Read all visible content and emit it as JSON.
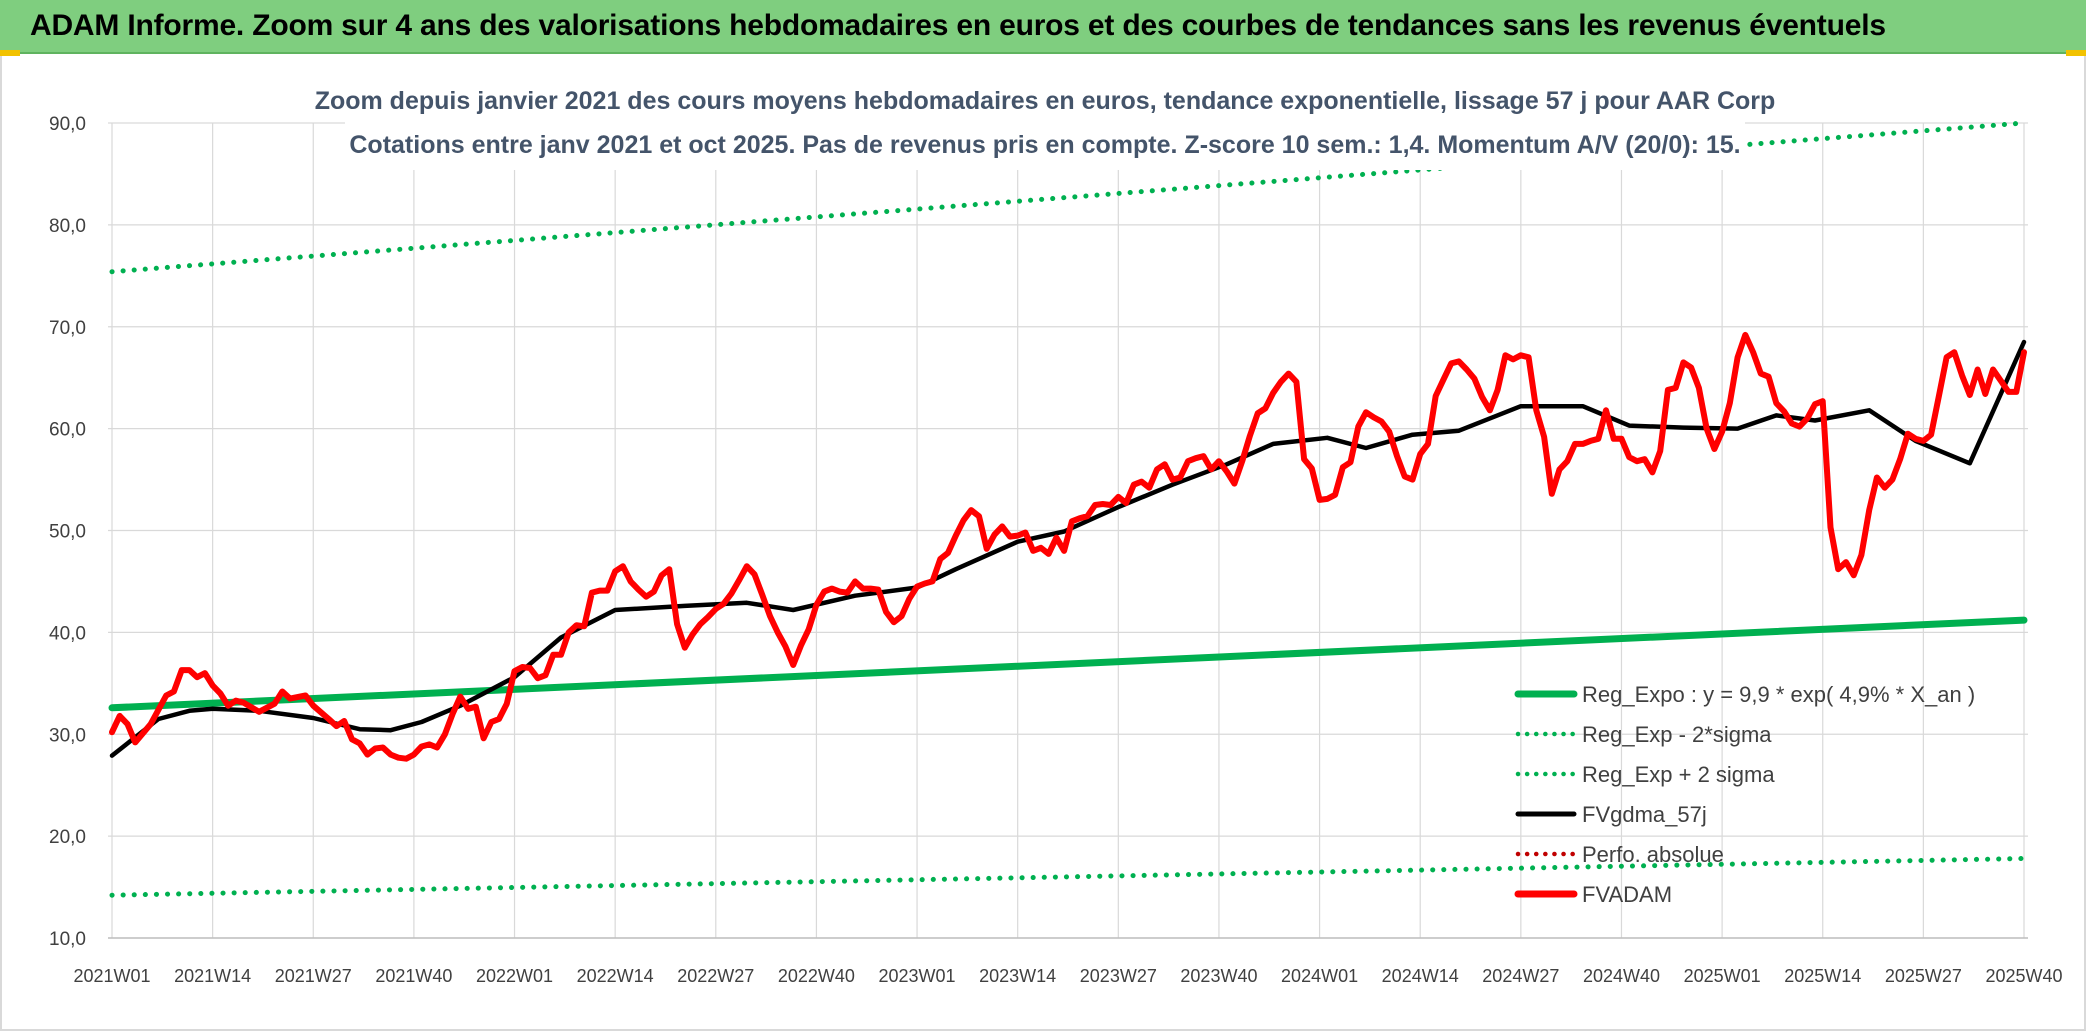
{
  "header": {
    "title": "ADAM Informe. Zoom sur 4 ans des valorisations hebdomadaires en euros et des courbes de tendances sans les revenus éventuels"
  },
  "colors": {
    "banner_bg": "#7fce7f",
    "trend": "#00b050",
    "price": "#ff0000",
    "smooth": "#000000",
    "perfo": "#c00000",
    "grid": "#d9d9d9",
    "title_text": "#44546a"
  },
  "chart_data": {
    "type": "line",
    "title": "Zoom depuis janvier 2021 des cours moyens hebdomadaires en euros, tendance exponentielle, lissage 57 j pour AAR Corp",
    "subtitle": "Cotations entre janv 2021 et oct 2025. Pas de revenus pris en compte. Z-score 10 sem.: 1,4. Momentum A/V (20/0): 15.",
    "xlabel": "",
    "ylabel": "",
    "ylim": [
      10,
      90
    ],
    "yticks": [
      "10,0",
      "20,0",
      "30,0",
      "40,0",
      "50,0",
      "60,0",
      "70,0",
      "80,0",
      "90,0"
    ],
    "xticks": [
      "2021W01",
      "2021W14",
      "2021W27",
      "2021W40",
      "2022W01",
      "2022W14",
      "2022W27",
      "2022W40",
      "2023W01",
      "2023W14",
      "2023W27",
      "2023W40",
      "2024W01",
      "2024W14",
      "2024W27",
      "2024W40",
      "2025W01",
      "2025W14",
      "2025W27",
      "2025W40"
    ],
    "grid": true,
    "legend_position": "bottom-right",
    "legend": [
      {
        "name": "Reg_Expo : y = 9,9 * exp( 4,9% *  X_an )",
        "style": "solid-thick",
        "color": "#00b050"
      },
      {
        "name": "Reg_Exp - 2*sigma",
        "style": "dotted",
        "color": "#00b050"
      },
      {
        "name": "Reg_Exp + 2 sigma",
        "style": "dotted",
        "color": "#00b050"
      },
      {
        "name": "FVgdma_57j",
        "style": "solid",
        "color": "#000000"
      },
      {
        "name": "Perfo. absolue",
        "style": "dotted",
        "color": "#c00000"
      },
      {
        "name": "FVADAM",
        "style": "solid-thick",
        "color": "#ff0000"
      }
    ],
    "series": [
      {
        "name": "Reg_Expo",
        "x_week_index": [
          0,
          247
        ],
        "values": [
          32.6,
          41.2
        ]
      },
      {
        "name": "Reg_Exp - 2*sigma",
        "x_week_index": [
          0,
          247
        ],
        "values": [
          14.2,
          17.8
        ]
      },
      {
        "name": "Reg_Exp + 2 sigma",
        "x_week_index": [
          0,
          247
        ],
        "values": [
          75.4,
          90.0
        ]
      },
      {
        "name": "FVgdma_57j",
        "x_week_index": [
          0,
          6,
          10,
          13,
          19,
          26,
          32,
          36,
          40,
          45,
          52,
          58,
          65,
          74,
          82,
          88,
          96,
          104,
          109,
          117,
          123,
          130,
          137,
          144,
          150,
          157,
          162,
          168,
          174,
          182,
          190,
          196,
          203,
          210,
          215,
          220,
          227,
          233,
          240,
          247
        ],
        "values": [
          27.9,
          31.5,
          32.3,
          32.5,
          32.3,
          31.6,
          30.5,
          30.4,
          31.2,
          32.8,
          35.6,
          39.5,
          42.2,
          42.6,
          42.9,
          42.2,
          43.6,
          44.4,
          46.2,
          48.9,
          49.9,
          52.3,
          54.5,
          56.5,
          58.5,
          59.1,
          58.1,
          59.4,
          59.8,
          62.2,
          62.2,
          60.3,
          60.1,
          60.0,
          61.3,
          60.8,
          61.8,
          58.8,
          56.6,
          68.5
        ]
      },
      {
        "name": "FVADAM",
        "x_week_index": [
          0,
          1,
          2,
          3,
          5,
          7,
          8,
          9,
          10,
          11,
          12,
          13,
          14,
          15,
          16,
          17,
          19,
          21,
          22,
          23,
          25,
          26,
          28,
          29,
          30,
          31,
          32,
          33,
          34,
          35,
          36,
          37,
          38,
          39,
          40,
          41,
          42,
          43,
          44,
          45,
          46,
          47,
          48,
          49,
          50,
          51,
          52,
          53,
          54,
          55,
          56,
          57,
          58,
          59,
          60,
          61,
          62,
          63,
          64,
          65,
          66,
          67,
          68,
          69,
          70,
          71,
          72,
          73,
          74,
          75,
          76,
          77,
          78,
          79,
          80,
          81,
          82,
          83,
          84,
          85,
          86,
          87,
          88,
          89,
          90,
          91,
          92,
          93,
          94,
          95,
          96,
          97,
          98,
          99,
          100,
          101,
          102,
          103,
          104,
          105,
          106,
          107,
          108,
          109,
          110,
          111,
          112,
          113,
          114,
          115,
          116,
          117,
          118,
          119,
          120,
          121,
          122,
          123,
          124,
          125,
          126,
          127,
          128,
          129,
          130,
          131,
          132,
          133,
          134,
          135,
          136,
          137,
          138,
          139,
          140,
          141,
          142,
          143,
          144,
          145,
          146,
          147,
          148,
          149,
          150,
          151,
          152,
          153,
          154,
          155,
          156,
          157,
          158,
          159,
          160,
          161,
          162,
          163,
          164,
          165,
          166,
          167,
          168,
          169,
          170,
          171,
          172,
          173,
          174,
          175,
          176,
          177,
          178,
          179,
          180,
          181,
          182,
          183,
          184,
          185,
          186,
          187,
          188,
          189,
          190,
          191,
          192,
          193,
          194,
          195,
          196,
          197,
          198,
          199,
          200,
          201,
          202,
          203,
          204,
          205,
          206,
          207,
          208,
          209,
          210,
          211,
          212,
          213,
          214,
          215,
          216,
          217,
          218,
          219,
          220,
          221,
          222,
          223,
          224,
          225,
          226,
          227,
          228,
          229,
          230,
          231,
          232,
          233,
          234,
          235,
          236,
          237,
          238,
          239,
          240,
          241,
          242,
          243,
          244,
          245,
          246,
          247
        ],
        "values": [
          30.2,
          31.8,
          31.0,
          29.2,
          31.0,
          33.8,
          34.2,
          36.3,
          36.3,
          35.6,
          36.0,
          34.8,
          34.0,
          32.8,
          33.3,
          33.1,
          32.2,
          33.0,
          34.2,
          33.5,
          33.8,
          32.8,
          31.5,
          30.8,
          31.3,
          29.5,
          29.1,
          28.0,
          28.6,
          28.7,
          28.0,
          27.7,
          27.6,
          28.0,
          28.8,
          29.0,
          28.7,
          30.0,
          32.0,
          33.7,
          32.5,
          32.7,
          29.6,
          31.2,
          31.5,
          33.0,
          36.2,
          36.6,
          36.5,
          35.5,
          35.8,
          37.8,
          37.8,
          40.0,
          40.7,
          40.6,
          43.9,
          44.1,
          44.1,
          46.0,
          46.5,
          45.0,
          44.2,
          43.5,
          44.0,
          45.6,
          46.2,
          40.8,
          38.5,
          39.8,
          40.8,
          41.5,
          42.3,
          42.8,
          43.8,
          45.1,
          46.5,
          45.7,
          43.7,
          41.6,
          40.0,
          38.6,
          36.8,
          38.7,
          40.3,
          42.7,
          44.0,
          44.3,
          44.0,
          43.9,
          45.0,
          44.3,
          44.3,
          44.2,
          42.0,
          41.0,
          41.6,
          43.3,
          44.5,
          44.8,
          45.0,
          47.2,
          47.8,
          49.5,
          51.0,
          52.0,
          51.4,
          48.2,
          49.6,
          50.4,
          49.4,
          49.5,
          49.8,
          48.0,
          48.3,
          47.7,
          49.3,
          48.0,
          50.9,
          51.2,
          51.4,
          52.5,
          52.6,
          52.5,
          53.3,
          52.7,
          54.5,
          54.8,
          54.2,
          56.0,
          56.5,
          55.0,
          55.2,
          56.8,
          57.1,
          57.3,
          56.0,
          56.8,
          55.8,
          54.6,
          56.8,
          59.3,
          61.5,
          62.0,
          63.5,
          64.6,
          65.4,
          64.6,
          57.0,
          56.1,
          53.0,
          53.1,
          53.5,
          56.2,
          56.7,
          60.2,
          61.6,
          61.1,
          60.7,
          59.7,
          57.3,
          55.3,
          55.0,
          57.5,
          58.5,
          63.2,
          64.8,
          66.4,
          66.6,
          65.8,
          64.9,
          63.1,
          61.8,
          63.8,
          67.2,
          66.8,
          67.2,
          67.0,
          61.8,
          59.2,
          53.6,
          56.0,
          56.8,
          58.5,
          58.5,
          58.8,
          59.0,
          61.8,
          59.0,
          59.0,
          57.2,
          56.8,
          57.0,
          55.7,
          57.8,
          63.8,
          64.0,
          66.5,
          66.0,
          64.0,
          60.0,
          58.0,
          59.7,
          62.5,
          67.0,
          69.2,
          67.5,
          65.4,
          65.1,
          62.5,
          61.7,
          60.5,
          60.2,
          61.0,
          62.4,
          62.7,
          50.3,
          46.2,
          46.9,
          45.6,
          47.6,
          52.0,
          55.2,
          54.2,
          55.0,
          57.0,
          59.5,
          59.0,
          58.8,
          59.4,
          63.2,
          67.0,
          67.5,
          65.2,
          63.3,
          65.8,
          63.4,
          65.8,
          64.7,
          63.6,
          63.6,
          67.5,
          73.0
        ]
      }
    ]
  }
}
